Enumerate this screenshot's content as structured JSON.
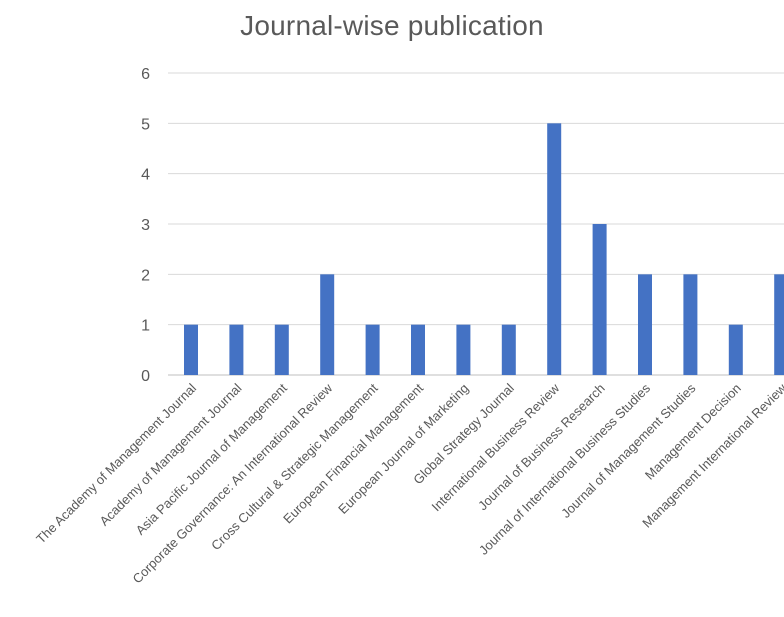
{
  "chart_data": {
    "type": "bar",
    "title": "Journal-wise publication",
    "xlabel": "",
    "ylabel": "",
    "ylim": [
      0,
      6
    ],
    "yticks": [
      0,
      1,
      2,
      3,
      4,
      5,
      6
    ],
    "grid": true,
    "legend": "none",
    "bar_color": "#4472C4",
    "categories": [
      "The Academy of Management Journal",
      "Academy of Management Journal",
      "Asia Pacific Journal of Management",
      "Corporate Governance: An International Review",
      "Cross Cultural & Strategic Management",
      "European Financial Management",
      "European Journal of Marketing",
      "Global Strategy Journal",
      "International Business Review",
      "Journal of Business Research",
      "Journal of International Business Studies",
      "Journal of Management Studies",
      "Management Decision",
      "Management International Review"
    ],
    "values": [
      1,
      1,
      1,
      2,
      1,
      1,
      1,
      1,
      5,
      3,
      2,
      2,
      1,
      2
    ]
  }
}
